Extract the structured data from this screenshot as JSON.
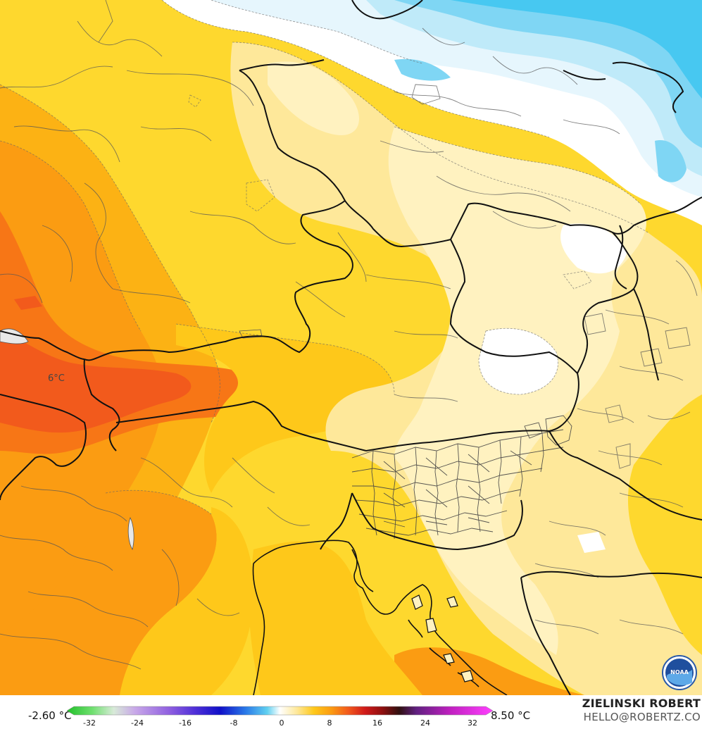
{
  "map": {
    "place_label": "6°C"
  },
  "legend": {
    "min_label": "-2.60 °C",
    "max_label": "8.50 °C",
    "ticks": [
      "-32",
      "-24",
      "-16",
      "-8",
      "0",
      "8",
      "16",
      "24",
      "32"
    ]
  },
  "credits": {
    "name": "ZIELINSKI ROBERT",
    "email": "HELLO@ROBERTZ.CO"
  },
  "logo": {
    "text": "NOAA"
  },
  "colors": {
    "white_zone": "#ffffff",
    "cold_light": "#e6f6fd",
    "cold_mid": "#bfeaf9",
    "cold": "#7fd6f4",
    "cold_deep": "#47c8f1",
    "pale_yellow": "#fff2c0",
    "light_yellow": "#fee89a",
    "yellow": "#fed82e",
    "gold": "#fec81a",
    "orange_light": "#fdae14",
    "orange": "#fb9c12",
    "orange_dark": "#f77616",
    "red_orange": "#f25a1c"
  }
}
